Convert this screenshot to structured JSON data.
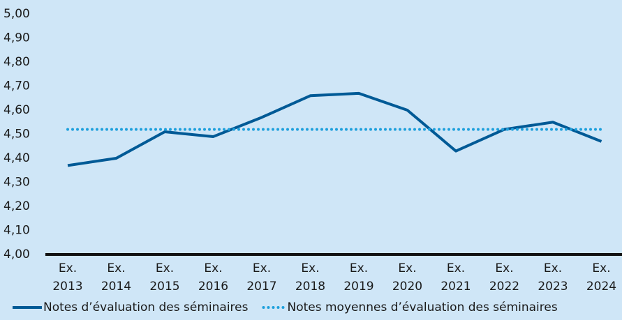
{
  "chart_data": {
    "type": "line",
    "categories": [
      "Ex. 2013",
      "Ex. 2014",
      "Ex. 2015",
      "Ex. 2016",
      "Ex. 2017",
      "Ex. 2018",
      "Ex. 2019",
      "Ex. 2020",
      "Ex. 2021",
      "Ex. 2022",
      "Ex. 2023",
      "Ex. 2024"
    ],
    "series": [
      {
        "name": "Notes d’évaluation des séminaires",
        "color": "#005a96",
        "style": "solid",
        "values": [
          4.37,
          4.4,
          4.51,
          4.49,
          4.57,
          4.66,
          4.67,
          4.6,
          4.43,
          4.52,
          4.55,
          4.47
        ]
      },
      {
        "name": "Notes moyennes d’évaluation des séminaires",
        "color": "#1ea0dc",
        "style": "dotted",
        "values": [
          4.52,
          4.52,
          4.52,
          4.52,
          4.52,
          4.52,
          4.52,
          4.52,
          4.52,
          4.52,
          4.52,
          4.52
        ]
      }
    ],
    "ylim": [
      4,
      5
    ],
    "yticks": [
      {
        "value": 4,
        "label": "4,00"
      },
      {
        "value": 4.1,
        "label": "4,10"
      },
      {
        "value": 4.2,
        "label": "4,20"
      },
      {
        "value": 4.3,
        "label": "4,30"
      },
      {
        "value": 4.4,
        "label": "4,40"
      },
      {
        "value": 4.5,
        "label": "4,50"
      },
      {
        "value": 4.6,
        "label": "4,60"
      },
      {
        "value": 4.7,
        "label": "4,70"
      },
      {
        "value": 4.8,
        "label": "4,80"
      },
      {
        "value": 4.9,
        "label": "4,90"
      },
      {
        "value": 5,
        "label": "5,00"
      }
    ],
    "legend": "bottom"
  }
}
